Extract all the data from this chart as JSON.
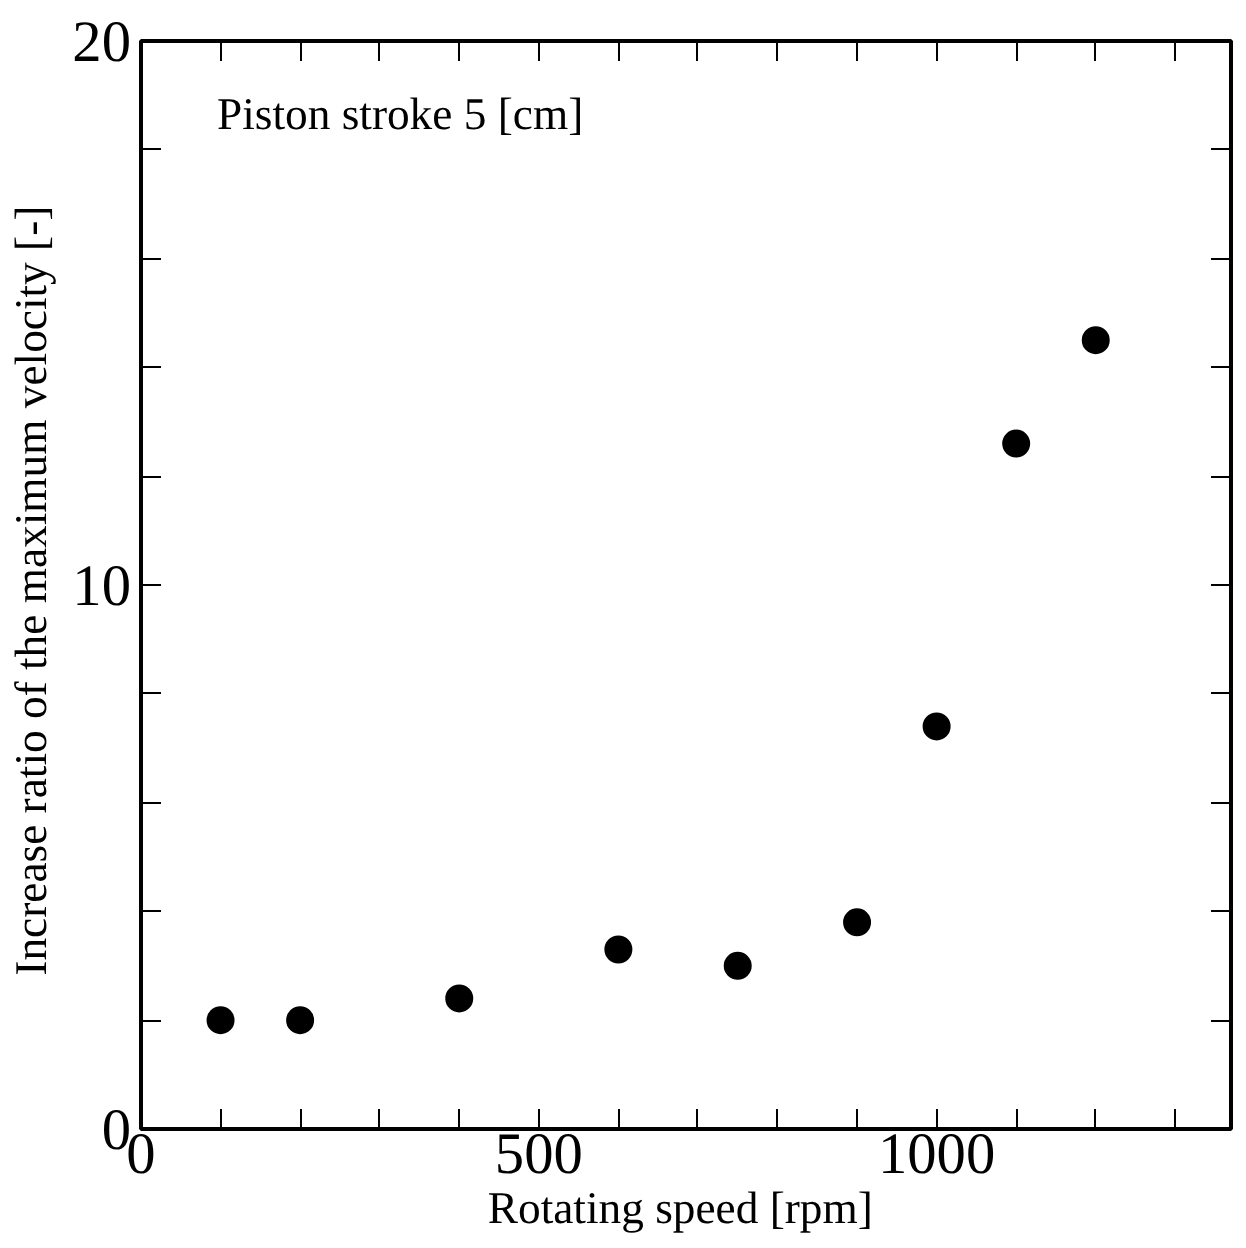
{
  "chart_data": {
    "type": "scatter",
    "xlabel": "Rotating speed  [rpm]",
    "ylabel": "Increase ratio of the maximum velocity  [-]",
    "annotations": [
      "Piston stroke  5 [cm]"
    ],
    "x": [
      100,
      200,
      400,
      600,
      750,
      900,
      1000,
      1100,
      1200
    ],
    "series": [
      {
        "color": "#000000",
        "values": [
          2.0,
          2.0,
          2.4,
          3.3,
          3.0,
          3.8,
          7.4,
          12.6,
          14.5
        ]
      }
    ],
    "marker": "circle",
    "xlim": [
      0,
      1370
    ],
    "xticks": [
      0,
      {
        "value": 100,
        "label": null
      },
      {
        "value": 200,
        "label": null
      },
      {
        "value": 300,
        "label": null
      },
      {
        "value": 400,
        "label": null
      },
      500,
      {
        "value": 600,
        "label": null
      },
      {
        "value": 700,
        "label": null
      },
      {
        "value": 800,
        "label": null
      },
      {
        "value": 900,
        "label": null
      },
      1000,
      {
        "value": 1100,
        "label": null
      },
      {
        "value": 1200,
        "label": null
      },
      {
        "value": 1300,
        "label": null
      }
    ],
    "ylim": [
      0,
      20
    ],
    "yticks": [
      0,
      {
        "value": 2,
        "label": null
      },
      {
        "value": 4,
        "label": null
      },
      {
        "value": 6,
        "label": null
      },
      {
        "value": 8,
        "label": null
      },
      10,
      {
        "value": 12,
        "label": null
      },
      {
        "value": 14,
        "label": null
      },
      {
        "value": 16,
        "label": null
      },
      {
        "value": 18,
        "label": null
      },
      20
    ],
    "grid": false
  }
}
